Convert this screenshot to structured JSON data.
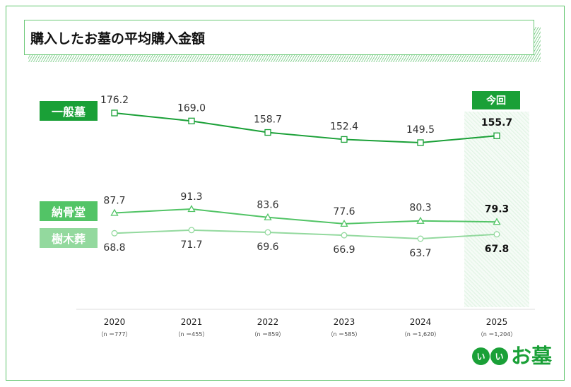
{
  "title": "購入したお墓の平均購入金額",
  "highlight_label": "今回",
  "logo": {
    "circle_1": "い",
    "circle_2": "い",
    "text": "お墓"
  },
  "colors": {
    "ippan": "#1aa037",
    "noukotsu": "#52c466",
    "jumoku": "#93d99e",
    "axis": "#dddddd"
  },
  "chart_data": {
    "type": "line",
    "title": "購入したお墓の平均購入金額",
    "x": [
      "2020",
      "2021",
      "2022",
      "2023",
      "2024",
      "2025"
    ],
    "x_sublabels": [
      "（n ＝777）",
      "（n ＝455）",
      "（n ＝859）",
      "（n ＝585）",
      "（n ＝1,620）",
      "（n ＝1,204）"
    ],
    "series": [
      {
        "name": "一般墓",
        "marker": "square",
        "values": [
          176.2,
          169.0,
          158.7,
          152.4,
          149.5,
          155.7
        ],
        "labels": [
          "176.2",
          "169.0",
          "158.7",
          "152.4",
          "149.5",
          "155.7"
        ]
      },
      {
        "name": "納骨堂",
        "marker": "triangle",
        "values": [
          87.7,
          91.3,
          83.6,
          77.6,
          80.3,
          79.3
        ],
        "labels": [
          "87.7",
          "91.3",
          "83.6",
          "77.6",
          "80.3",
          "79.3"
        ]
      },
      {
        "name": "樹木葬",
        "marker": "circle",
        "values": [
          68.8,
          71.7,
          69.6,
          66.9,
          63.7,
          67.8
        ],
        "labels": [
          "68.8",
          "71.7",
          "69.6",
          "66.9",
          "63.7",
          "67.8"
        ]
      }
    ],
    "highlight_category": "2025",
    "grid": false,
    "legend": "left"
  }
}
